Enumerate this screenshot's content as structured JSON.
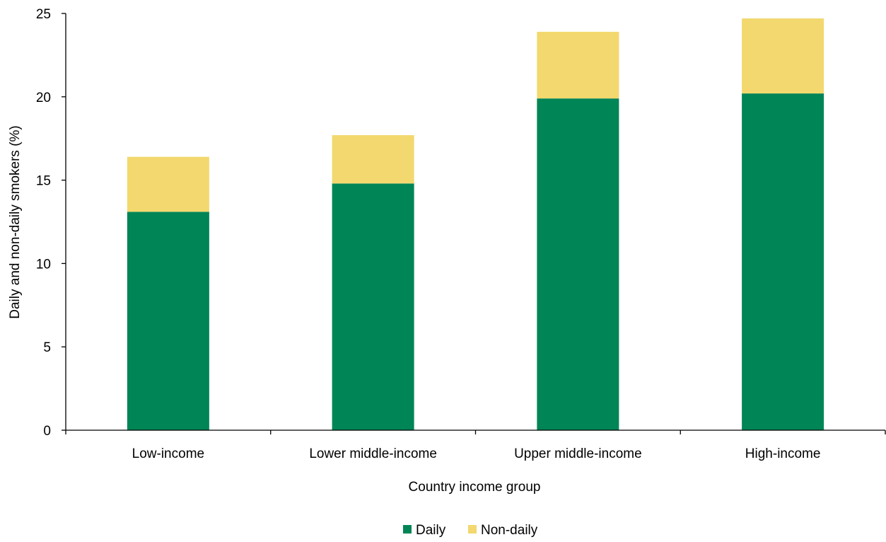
{
  "chart_data": {
    "type": "bar",
    "stacked": true,
    "title": "",
    "xlabel": "Country income group",
    "ylabel": "Daily and non-daily smokers (%)",
    "ylim": [
      0,
      25
    ],
    "yticks": [
      0,
      5,
      10,
      15,
      20,
      25
    ],
    "grid": false,
    "legend_position": "bottom",
    "categories": [
      "Low-income",
      "Lower middle-income",
      "Upper middle-income",
      "High-income"
    ],
    "series": [
      {
        "name": "Daily",
        "color": "#008556",
        "values": [
          13.1,
          14.8,
          19.9,
          20.2
        ]
      },
      {
        "name": "Non-daily",
        "color": "#F2D86E",
        "values": [
          3.3,
          2.9,
          4.0,
          4.5
        ]
      }
    ]
  }
}
